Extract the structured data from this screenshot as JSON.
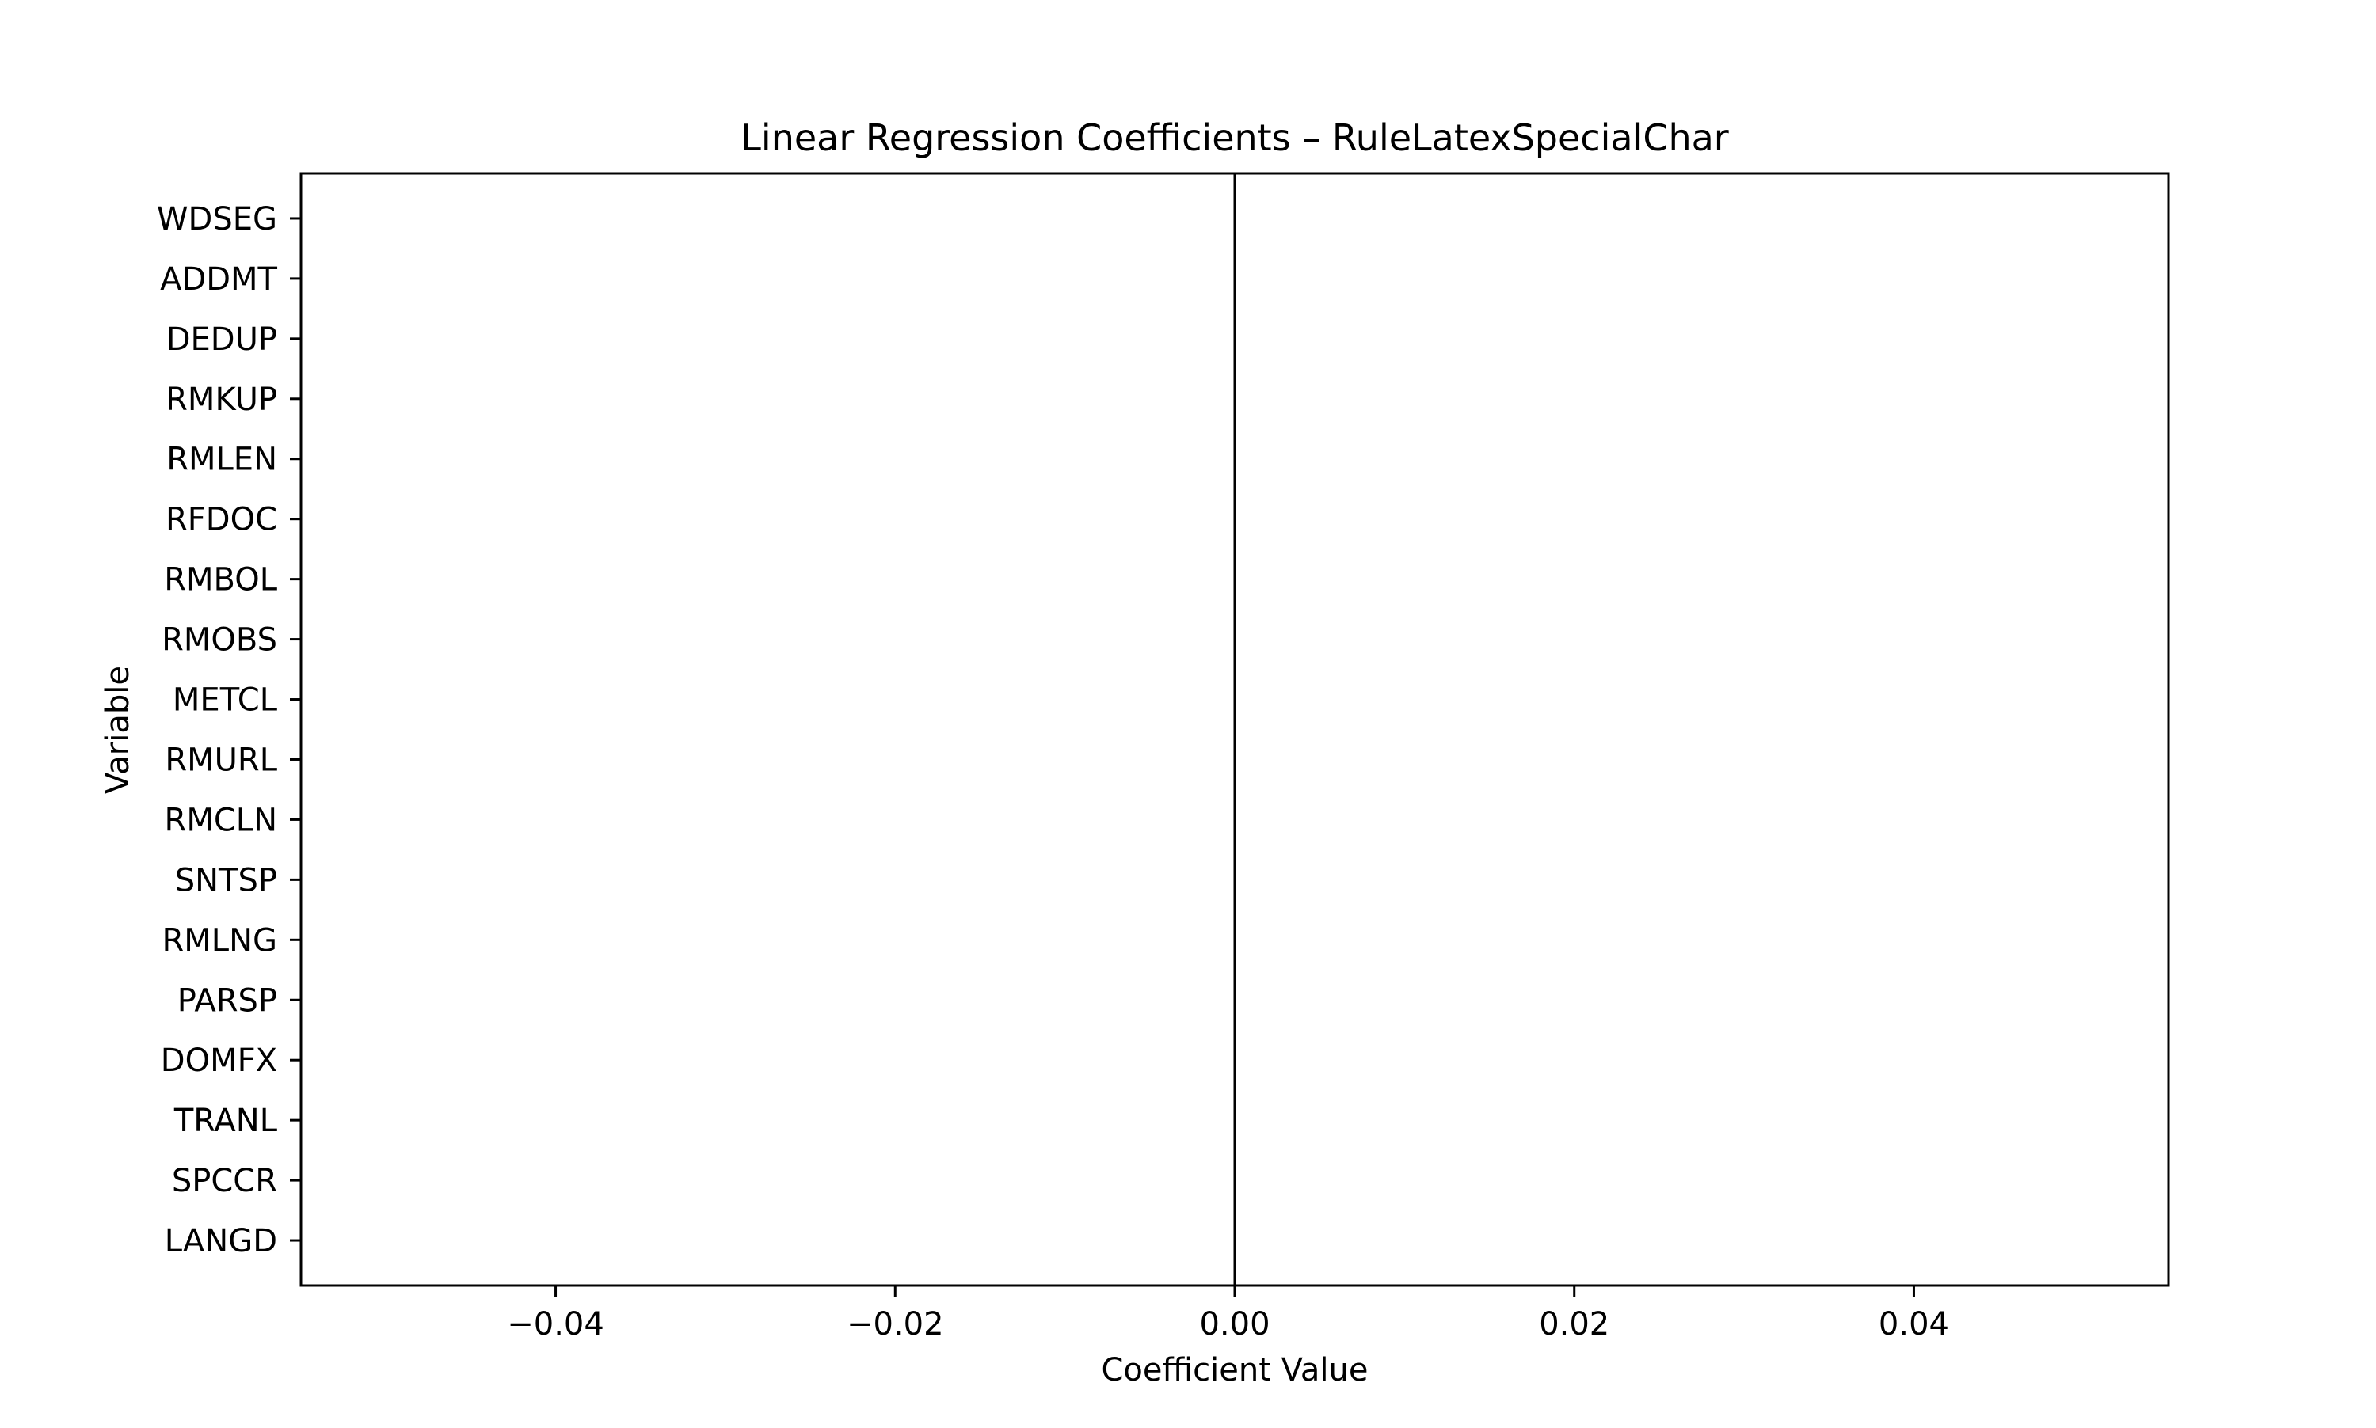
{
  "chart_data": {
    "type": "bar",
    "orientation": "horizontal",
    "title": "Linear Regression Coefficients – RuleLatexSpecialChar",
    "xlabel": "Coefficient Value",
    "ylabel": "Variable",
    "xlim": [
      -0.055,
      0.055
    ],
    "xticks": [
      -0.04,
      -0.02,
      0.0,
      0.02,
      0.04
    ],
    "xtick_labels": [
      "−0.04",
      "−0.02",
      "0.00",
      "0.02",
      "0.04"
    ],
    "categories": [
      "WDSEG",
      "ADDMT",
      "DEDUP",
      "RMKUP",
      "RMLEN",
      "RFDOC",
      "RMBOL",
      "RMOBS",
      "METCL",
      "RMURL",
      "RMCLN",
      "SNTSP",
      "RMLNG",
      "PARSP",
      "DOMFX",
      "TRANL",
      "SPCCR",
      "LANGD"
    ],
    "values": [
      0,
      0,
      0,
      0,
      0,
      0,
      0,
      0,
      0,
      0,
      0,
      0,
      0,
      0,
      0,
      0,
      0,
      0
    ],
    "reference_line_x": 0,
    "grid": false,
    "legend": false
  }
}
